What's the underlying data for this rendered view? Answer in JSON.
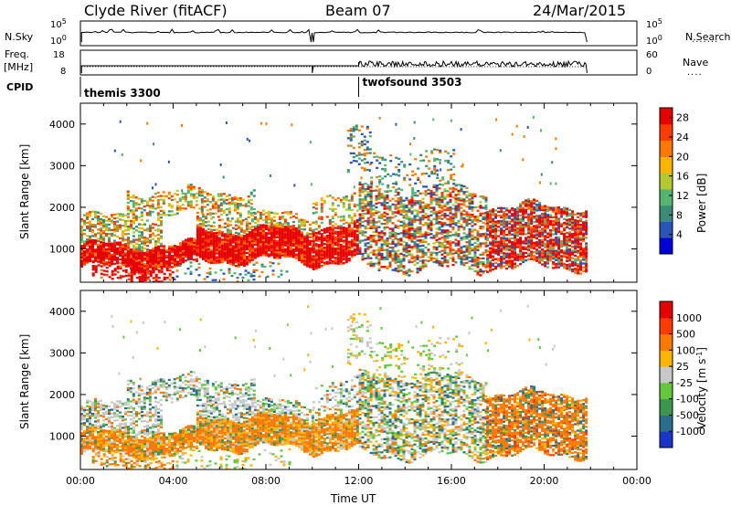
{
  "header": {
    "left_title": "Clyde River (fitACF)",
    "center_title": "Beam 07",
    "right_title": "24/Mar/2015"
  },
  "nsky_panel": {
    "left_label": "N.Sky",
    "right_label": "N.Search",
    "left_ticks": [
      "10^5",
      "10^0"
    ],
    "right_ticks": [
      "10^5",
      "10^0"
    ]
  },
  "freq_panel": {
    "left_label_top": "Freq.",
    "left_label_bottom": "[MHz]",
    "right_label": "Nave",
    "left_ticks": [
      "18",
      "8"
    ],
    "right_ticks": [
      "60",
      "0"
    ]
  },
  "cpid": {
    "label": "CPID",
    "segments": [
      {
        "name": "themis 3300",
        "start_hour": 0.0
      },
      {
        "name": "twofsound 3503",
        "start_hour": 12.0
      }
    ]
  },
  "chart_data": [
    {
      "type": "heatmap",
      "name": "power",
      "ylabel": "Slant Range [km]",
      "xlim_hours": [
        0,
        24
      ],
      "ylim_km": [
        200,
        4500
      ],
      "y_ticks": [
        "1000",
        "2000",
        "3000",
        "4000"
      ],
      "y_tick_values": [
        1000,
        2000,
        3000,
        4000
      ],
      "colorbar": {
        "label": "Power [dB]",
        "tick_labels": [
          "28",
          "24",
          "20",
          "16",
          "12",
          "8",
          "4"
        ],
        "tick_values": [
          28,
          24,
          20,
          16,
          12,
          8,
          4
        ],
        "range": [
          0,
          30
        ],
        "colors": [
          "#0000d8",
          "#2a55b4",
          "#3c8a78",
          "#55b46e",
          "#b4c832",
          "#ffb400",
          "#ff7800",
          "#ff3c00",
          "#e60000"
        ]
      }
    },
    {
      "type": "heatmap",
      "name": "velocity",
      "ylabel": "Slant Range [km]",
      "xlim_hours": [
        0,
        24
      ],
      "ylim_km": [
        200,
        4500
      ],
      "y_ticks": [
        "1000",
        "2000",
        "3000",
        "4000"
      ],
      "y_tick_values": [
        1000,
        2000,
        3000,
        4000
      ],
      "x_ticks": [
        "00:00",
        "04:00",
        "08:00",
        "12:00",
        "16:00",
        "20:00",
        "00:00"
      ],
      "x_tick_hours": [
        0,
        4,
        8,
        12,
        16,
        20,
        24
      ],
      "xlabel": "Time UT",
      "colorbar": {
        "label": "Velocity [m s^-1]",
        "tick_labels": [
          "1000",
          "500",
          "100",
          "25",
          "-25",
          "-100",
          "-500",
          "-1000"
        ],
        "colors": [
          "#1a35c8",
          "#2a6e8c",
          "#3c9650",
          "#64c83c",
          "#c8c8c8",
          "#ffb400",
          "#ff7800",
          "#ff3c00",
          "#e60000"
        ]
      }
    }
  ]
}
